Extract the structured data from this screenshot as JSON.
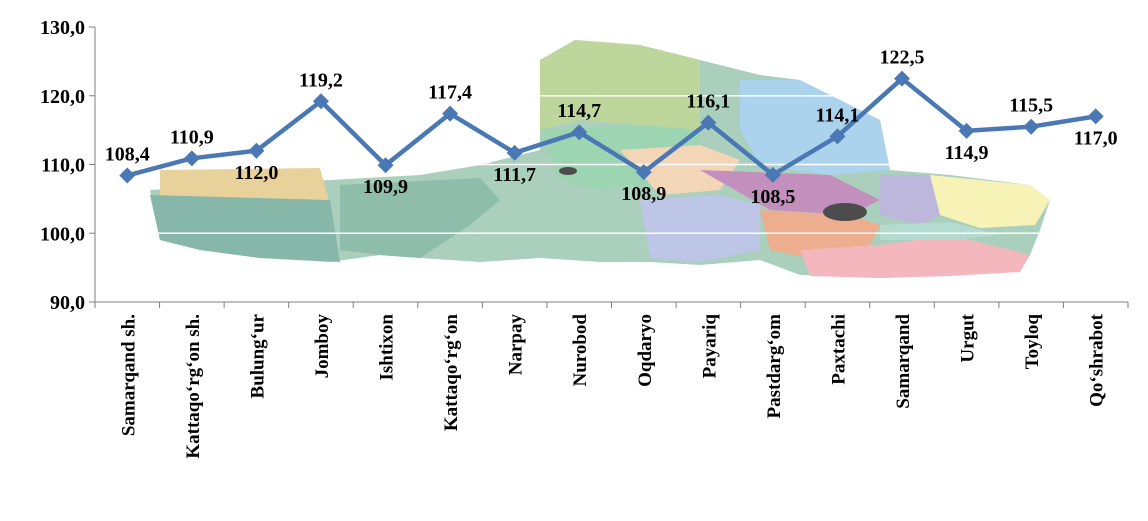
{
  "chart_data": {
    "type": "line",
    "title": "",
    "xlabel": "",
    "ylabel": "",
    "ylim": [
      90,
      130
    ],
    "yticks": [
      "90,0",
      "100,0",
      "110,0",
      "120,0",
      "130,0"
    ],
    "ytick_values": [
      90,
      100,
      110,
      120,
      130
    ],
    "grid": true,
    "legend": "none",
    "series_color": "#4a78b5",
    "categories": [
      "Samarqand sh.",
      "Kattaqo‘rg‘on sh.",
      "Bulung‘ur",
      "Jomboy",
      "Ishtixon",
      "Kattaqo‘rg‘on",
      "Narpay",
      "Nurobod",
      "Oqdaryo",
      "Payariq",
      "Pastdarg‘om",
      "Paxtachi",
      "Samarqand",
      "Urgut",
      "Toyloq",
      "Qo‘shrabot"
    ],
    "values": [
      108.4,
      110.9,
      112.0,
      119.2,
      109.9,
      117.4,
      111.7,
      114.7,
      108.9,
      116.1,
      108.5,
      114.1,
      122.5,
      114.9,
      115.5,
      117.0
    ],
    "value_labels": [
      "108,4",
      "110,9",
      "112,0",
      "119,2",
      "109,9",
      "117,4",
      "111,7",
      "114,7",
      "108,9",
      "116,1",
      "108,5",
      "114,1",
      "122,5",
      "114,9",
      "115,5",
      "117,0"
    ],
    "label_positions": [
      "above",
      "above",
      "below",
      "above",
      "below",
      "above",
      "below",
      "above",
      "below",
      "above",
      "below",
      "above",
      "above",
      "below",
      "above",
      "below"
    ]
  }
}
